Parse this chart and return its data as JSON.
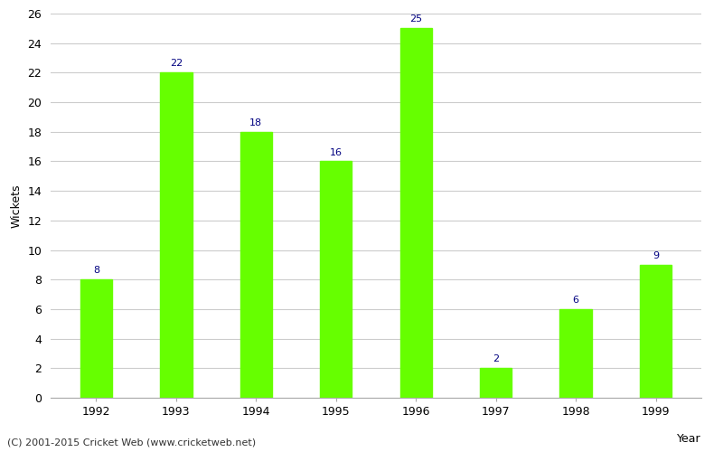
{
  "years": [
    "1992",
    "1993",
    "1994",
    "1995",
    "1996",
    "1997",
    "1998",
    "1999"
  ],
  "wickets": [
    8,
    22,
    18,
    16,
    25,
    2,
    6,
    9
  ],
  "bar_color": "#66ff00",
  "label_color": "#000080",
  "xlabel": "Year",
  "ylabel": "Wickets",
  "ylim": [
    0,
    26
  ],
  "yticks": [
    0,
    2,
    4,
    6,
    8,
    10,
    12,
    14,
    16,
    18,
    20,
    22,
    24,
    26
  ],
  "background_color": "#ffffff",
  "footer_text": "(C) 2001-2015 Cricket Web (www.cricketweb.net)",
  "label_fontsize": 8,
  "axis_fontsize": 9,
  "footer_fontsize": 8,
  "bar_width": 0.4,
  "grid_color": "#cccccc"
}
